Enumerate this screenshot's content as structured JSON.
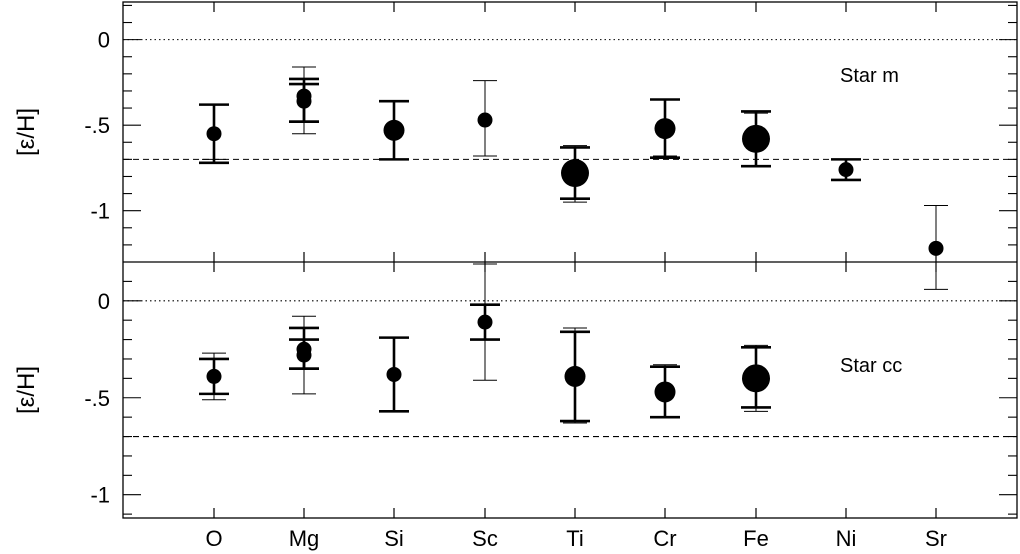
{
  "chart_data": {
    "type": "scatter",
    "categories": [
      "O",
      "Mg",
      "Si",
      "Sc",
      "Ti",
      "Cr",
      "Fe",
      "Ni",
      "Sr"
    ],
    "panels": [
      {
        "annotation": "Star m",
        "ylabel": "[ε/H]",
        "ylim": [
          -1.3,
          0.22
        ],
        "yticks": [
          0,
          -0.5,
          -1
        ],
        "ytick_labels": [
          "0",
          "-.5",
          "-1"
        ],
        "reference_lines": [
          {
            "y": 0,
            "style": "dotted"
          },
          {
            "y": -0.7,
            "style": "dashed"
          }
        ],
        "points": [
          {
            "cat": "O",
            "y": -0.55,
            "size": 7,
            "err_thin": [
              -0.7,
              -0.38
            ],
            "err_thick": [
              -0.72,
              -0.38
            ]
          },
          {
            "cat": "Mg",
            "y": -0.33,
            "size": 7,
            "err_thin": [
              -0.55,
              -0.16
            ],
            "err_thick": [
              -0.48,
              -0.23
            ]
          },
          {
            "cat": "Mg",
            "y": -0.36,
            "size": 7,
            "err_thin": null,
            "err_thick": [
              -0.48,
              -0.26
            ]
          },
          {
            "cat": "Si",
            "y": -0.53,
            "size": 10,
            "err_thin": [
              -0.7,
              -0.36
            ],
            "err_thick": [
              -0.7,
              -0.36
            ]
          },
          {
            "cat": "Sc",
            "y": -0.47,
            "size": 7,
            "err_thin": [
              -0.68,
              -0.24
            ],
            "err_thick": null
          },
          {
            "cat": "Ti",
            "y": -0.78,
            "size": 14,
            "err_thin": [
              -0.95,
              -0.62
            ],
            "err_thick": [
              -0.93,
              -0.63
            ]
          },
          {
            "cat": "Cr",
            "y": -0.52,
            "size": 10,
            "err_thin": [
              -0.68,
              -0.35
            ],
            "err_thick": [
              -0.69,
              -0.35
            ]
          },
          {
            "cat": "Fe",
            "y": -0.58,
            "size": 14,
            "err_thin": [
              -0.74,
              -0.43
            ],
            "err_thick": [
              -0.74,
              -0.42
            ]
          },
          {
            "cat": "Ni",
            "y": -0.76,
            "size": 7,
            "err_thin": null,
            "err_thick": [
              -0.82,
              -0.7
            ]
          },
          {
            "cat": "Sr",
            "y": -1.22,
            "size": 7,
            "err_thin": [
              -1.46,
              -0.97
            ],
            "err_thick": null
          }
        ]
      },
      {
        "annotation": "Star cc",
        "ylabel": "[ε/H]",
        "ylim": [
          -1.12,
          0.2
        ],
        "yticks": [
          0,
          -0.5,
          -1
        ],
        "ytick_labels": [
          "0",
          "-.5",
          "-1"
        ],
        "reference_lines": [
          {
            "y": 0,
            "style": "dotted"
          },
          {
            "y": -0.7,
            "style": "dashed"
          }
        ],
        "points": [
          {
            "cat": "O",
            "y": -0.39,
            "size": 7,
            "err_thin": [
              -0.51,
              -0.27
            ],
            "err_thick": [
              -0.48,
              -0.3
            ]
          },
          {
            "cat": "Mg",
            "y": -0.25,
            "size": 7,
            "err_thin": [
              -0.48,
              -0.08
            ],
            "err_thick": [
              -0.35,
              -0.14
            ]
          },
          {
            "cat": "Mg",
            "y": -0.28,
            "size": 7,
            "err_thin": null,
            "err_thick": [
              -0.35,
              -0.2
            ]
          },
          {
            "cat": "Si",
            "y": -0.38,
            "size": 7,
            "err_thin": [
              -0.57,
              -0.19
            ],
            "err_thick": [
              -0.57,
              -0.19
            ]
          },
          {
            "cat": "Sc",
            "y": -0.11,
            "size": 7,
            "err_thin": [
              -0.41,
              0.19
            ],
            "err_thick": [
              -0.2,
              -0.02
            ]
          },
          {
            "cat": "Ti",
            "y": -0.39,
            "size": 10,
            "err_thin": [
              -0.63,
              -0.14
            ],
            "err_thick": [
              -0.62,
              -0.16
            ]
          },
          {
            "cat": "Cr",
            "y": -0.47,
            "size": 10,
            "err_thin": [
              -0.6,
              -0.33
            ],
            "err_thick": [
              -0.6,
              -0.34
            ]
          },
          {
            "cat": "Fe",
            "y": -0.4,
            "size": 14,
            "err_thin": [
              -0.57,
              -0.23
            ],
            "err_thick": [
              -0.55,
              -0.24
            ]
          }
        ]
      }
    ],
    "grid": false,
    "legend": "none"
  }
}
